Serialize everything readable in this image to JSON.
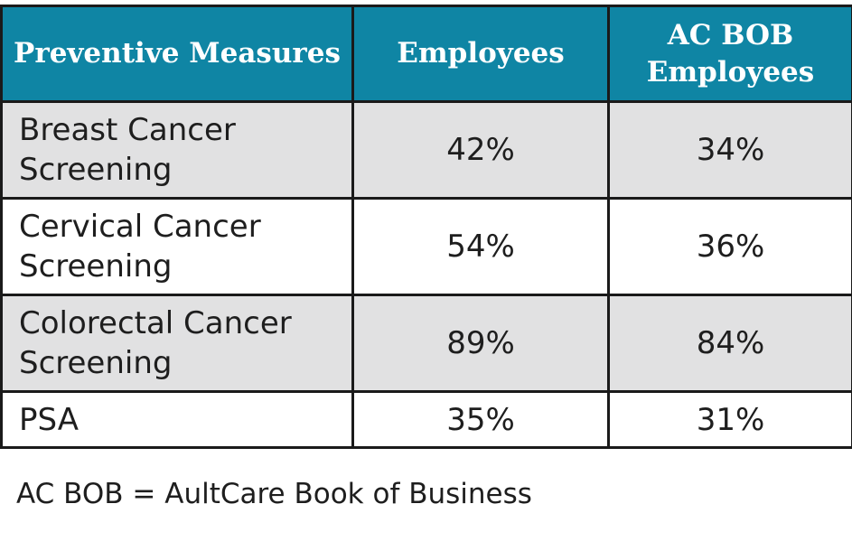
{
  "table": {
    "headers": [
      "Preventive Measures",
      "Employees",
      "AC BOB Employees"
    ],
    "rows": [
      {
        "measure": "Breast Cancer Screening",
        "employees": "42%",
        "ac_bob_employees": "34%"
      },
      {
        "measure": "Cervical Cancer Screening",
        "employees": "54%",
        "ac_bob_employees": "36%"
      },
      {
        "measure": "Colorectal Cancer Screening",
        "employees": "89%",
        "ac_bob_employees": "84%"
      },
      {
        "measure": "PSA",
        "employees": "35%",
        "ac_bob_employees": "31%"
      }
    ]
  },
  "footnote": "AC BOB = AultCare Book of Business",
  "colors": {
    "header_background": "#0f85a4",
    "header_text": "#ffffff",
    "shaded_row": "#e1e1e2",
    "border": "#1a1a1a"
  }
}
